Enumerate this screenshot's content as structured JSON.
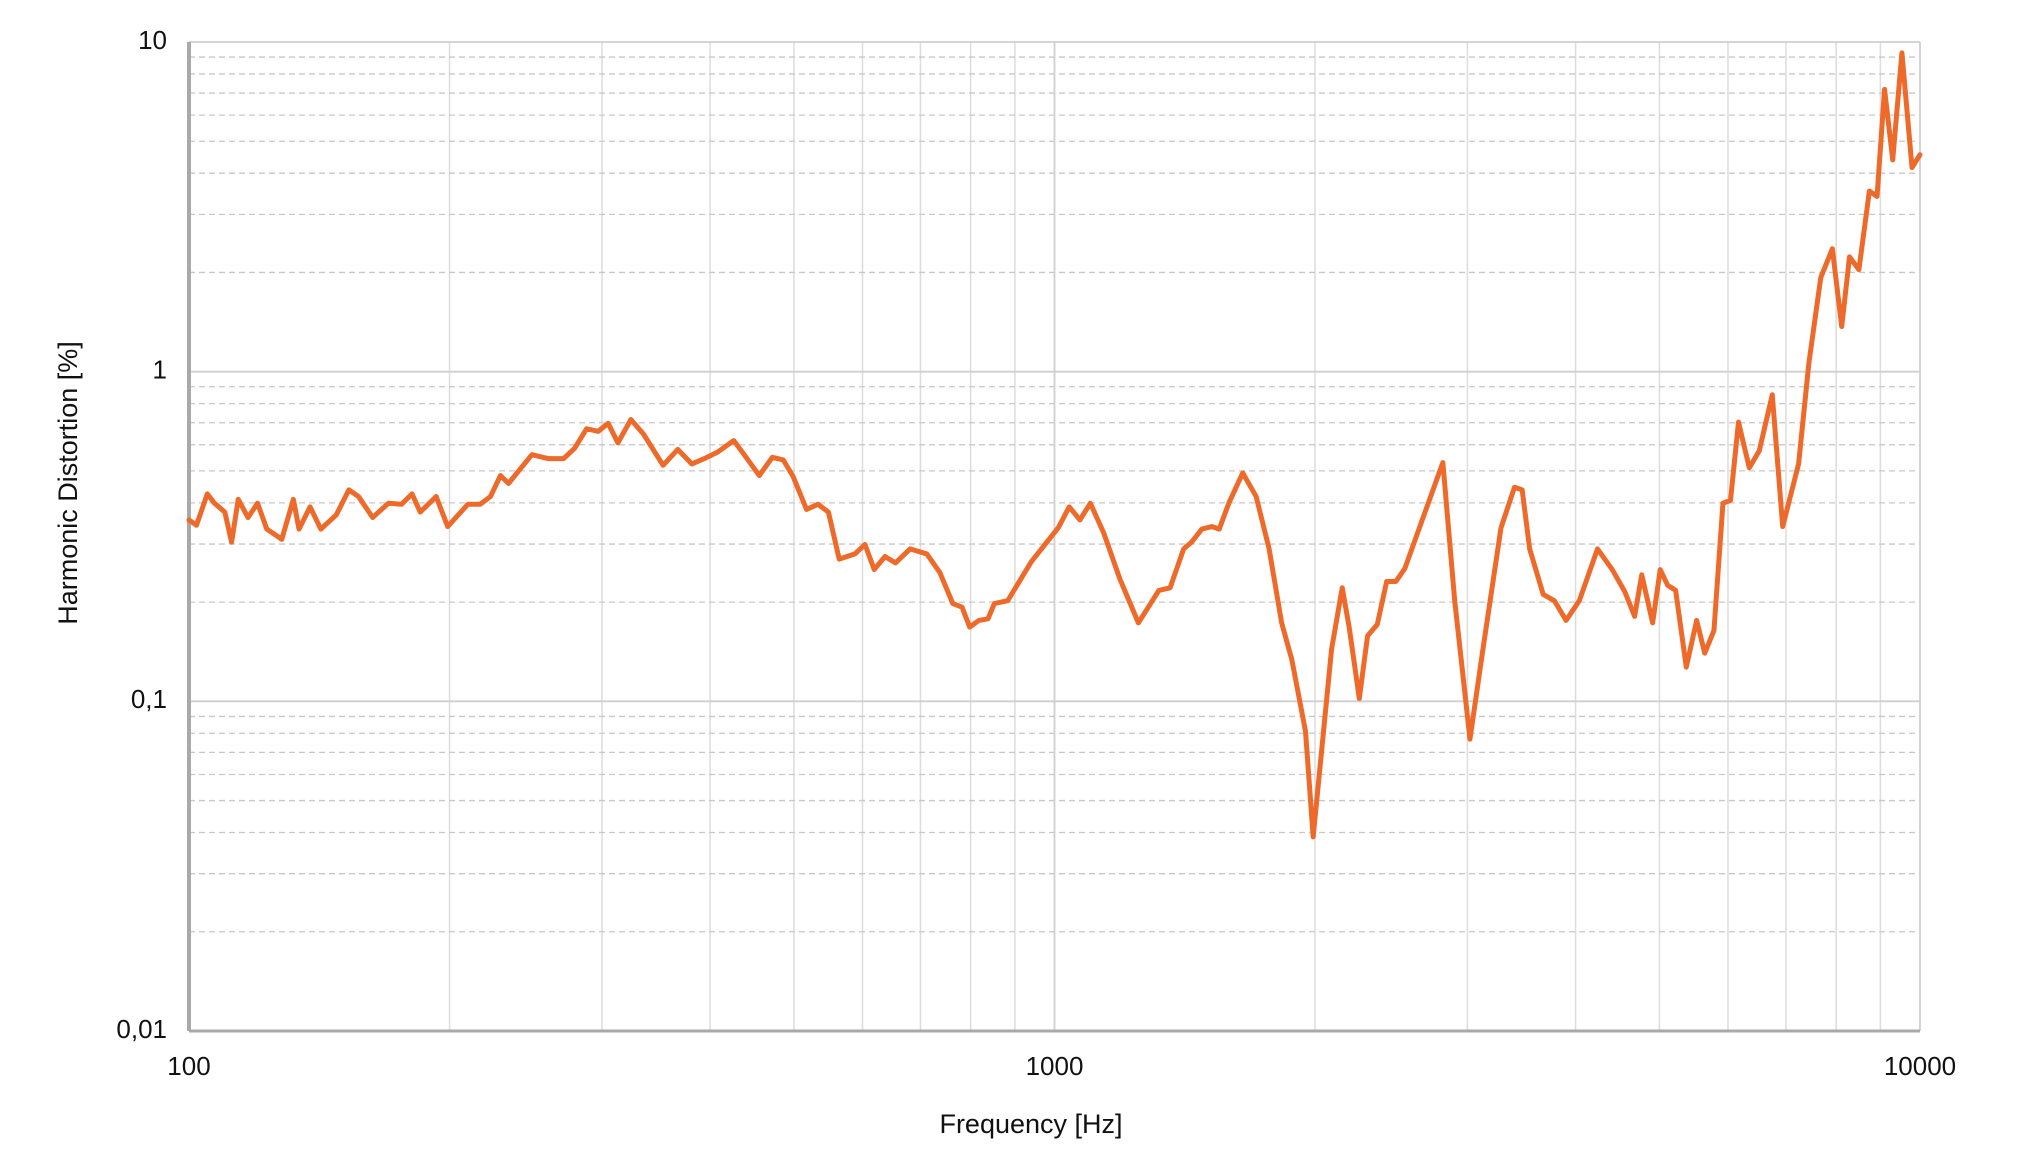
{
  "chart_data": {
    "type": "line",
    "xlabel": "Frequency [Hz]",
    "ylabel": "Harmonic Distortion [%]",
    "xscale": "log",
    "yscale": "log",
    "grid": true,
    "minor_grid": true,
    "xlim": [
      100,
      10000
    ],
    "ylim": [
      0.01,
      10
    ],
    "xticks": [
      100,
      1000,
      10000
    ],
    "yticks": [
      {
        "value": 0.01,
        "label": "0,01"
      },
      {
        "value": 0.1,
        "label": "0,1"
      },
      1,
      10
    ],
    "x": [
      100,
      102,
      105,
      107,
      110,
      112,
      114,
      117,
      120,
      123,
      128,
      132,
      134,
      138,
      142,
      148,
      153,
      157,
      163,
      170,
      176,
      181,
      185,
      193,
      199,
      210,
      217,
      223,
      229,
      234,
      242,
      249,
      260,
      271,
      279,
      288,
      297,
      305,
      313,
      324,
      335,
      353,
      367,
      381,
      394,
      408,
      426,
      438,
      456,
      472,
      486,
      499,
      517,
      533,
      548,
      564,
      588,
      604,
      619,
      637,
      655,
      681,
      712,
      737,
      763,
      782,
      798,
      818,
      838,
      852,
      883,
      940,
      972,
      1010,
      1040,
      1070,
      1100,
      1140,
      1190,
      1250,
      1320,
      1360,
      1410,
      1440,
      1480,
      1520,
      1550,
      1590,
      1650,
      1710,
      1770,
      1830,
      1880,
      1950,
      1990,
      2040,
      2090,
      2150,
      2190,
      2250,
      2300,
      2360,
      2420,
      2480,
      2540,
      2660,
      2810,
      2900,
      3020,
      3130,
      3280,
      3400,
      3470,
      3540,
      3670,
      3780,
      3900,
      4040,
      4240,
      4410,
      4560,
      4680,
      4770,
      4910,
      5010,
      5110,
      5220,
      5370,
      5520,
      5640,
      5780,
      5920,
      6040,
      6170,
      6350,
      6520,
      6750,
      6940,
      7240,
      7440,
      7680,
      7920,
      8120,
      8290,
      8500,
      8740,
      8920,
      9100,
      9300,
      9530,
      9790,
      10000
    ],
    "series": [
      {
        "name": "Harmonic Distortion",
        "color": "#ee6a2a",
        "values": [
          0.355,
          0.342,
          0.426,
          0.399,
          0.375,
          0.304,
          0.41,
          0.361,
          0.399,
          0.333,
          0.31,
          0.41,
          0.333,
          0.389,
          0.333,
          0.368,
          0.438,
          0.418,
          0.361,
          0.399,
          0.396,
          0.426,
          0.375,
          0.418,
          0.339,
          0.396,
          0.396,
          0.418,
          0.484,
          0.458,
          0.511,
          0.56,
          0.545,
          0.545,
          0.586,
          0.671,
          0.659,
          0.697,
          0.608,
          0.716,
          0.647,
          0.52,
          0.581,
          0.525,
          0.545,
          0.57,
          0.618,
          0.56,
          0.484,
          0.55,
          0.54,
          0.48,
          0.382,
          0.396,
          0.375,
          0.27,
          0.28,
          0.299,
          0.251,
          0.275,
          0.263,
          0.29,
          0.28,
          0.246,
          0.198,
          0.193,
          0.168,
          0.176,
          0.178,
          0.198,
          0.202,
          0.265,
          0.296,
          0.336,
          0.389,
          0.355,
          0.399,
          0.324,
          0.235,
          0.173,
          0.217,
          0.221,
          0.29,
          0.304,
          0.333,
          0.339,
          0.333,
          0.399,
          0.493,
          0.418,
          0.29,
          0.173,
          0.134,
          0.0811,
          0.0388,
          0.0753,
          0.144,
          0.221,
          0.168,
          0.102,
          0.158,
          0.171,
          0.231,
          0.231,
          0.253,
          0.355,
          0.53,
          0.202,
          0.0768,
          0.147,
          0.336,
          0.446,
          0.438,
          0.29,
          0.211,
          0.202,
          0.176,
          0.202,
          0.29,
          0.251,
          0.215,
          0.181,
          0.242,
          0.173,
          0.251,
          0.225,
          0.217,
          0.127,
          0.176,
          0.14,
          0.164,
          0.399,
          0.407,
          0.703,
          0.511,
          0.575,
          0.851,
          0.339,
          0.525,
          1.06,
          1.93,
          2.36,
          1.37,
          2.23,
          2.04,
          3.53,
          3.4,
          7.18,
          4.39,
          9.27,
          4.16,
          4.55
        ]
      }
    ]
  }
}
